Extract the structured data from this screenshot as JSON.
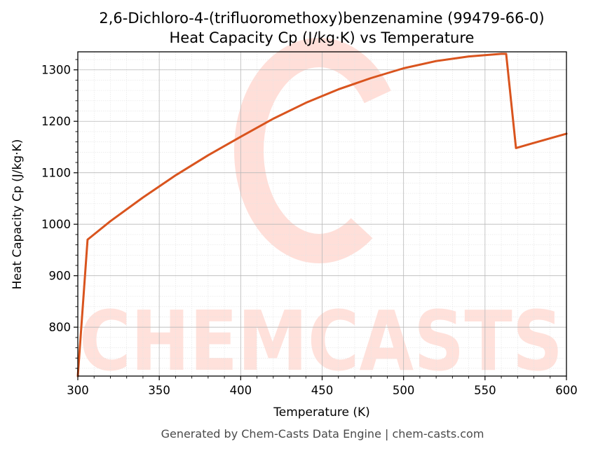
{
  "chart_data": {
    "type": "line",
    "title": "2,6-Dichloro-4-(trifluoromethoxy)benzenamine (99479-66-0)",
    "subtitle": "Heat Capacity Cp (J/kg·K) vs Temperature",
    "xlabel": "Temperature (K)",
    "ylabel": "Heat Capacity Cp (J/kg·K)",
    "xlim": [
      300,
      600
    ],
    "ylim": [
      705,
      1335
    ],
    "xticks": [
      300,
      350,
      400,
      450,
      500,
      550,
      600
    ],
    "yticks": [
      800,
      900,
      1000,
      1100,
      1200,
      1300
    ],
    "grid": true,
    "series": [
      {
        "color": "#d9541e",
        "x": [
          300,
          306,
          320,
          340,
          360,
          380,
          400,
          420,
          440,
          460,
          480,
          500,
          520,
          540,
          560,
          563,
          569,
          580,
          600
        ],
        "y": [
          705,
          970,
          1006,
          1052,
          1095,
          1134,
          1170,
          1205,
          1236,
          1262,
          1284,
          1303,
          1317,
          1326,
          1331,
          1331,
          1148,
          1158,
          1176
        ]
      }
    ]
  },
  "watermark": {
    "text": "CHEMCASTS"
  },
  "footer": "Generated by Chem-Casts Data Engine | chem-casts.com"
}
